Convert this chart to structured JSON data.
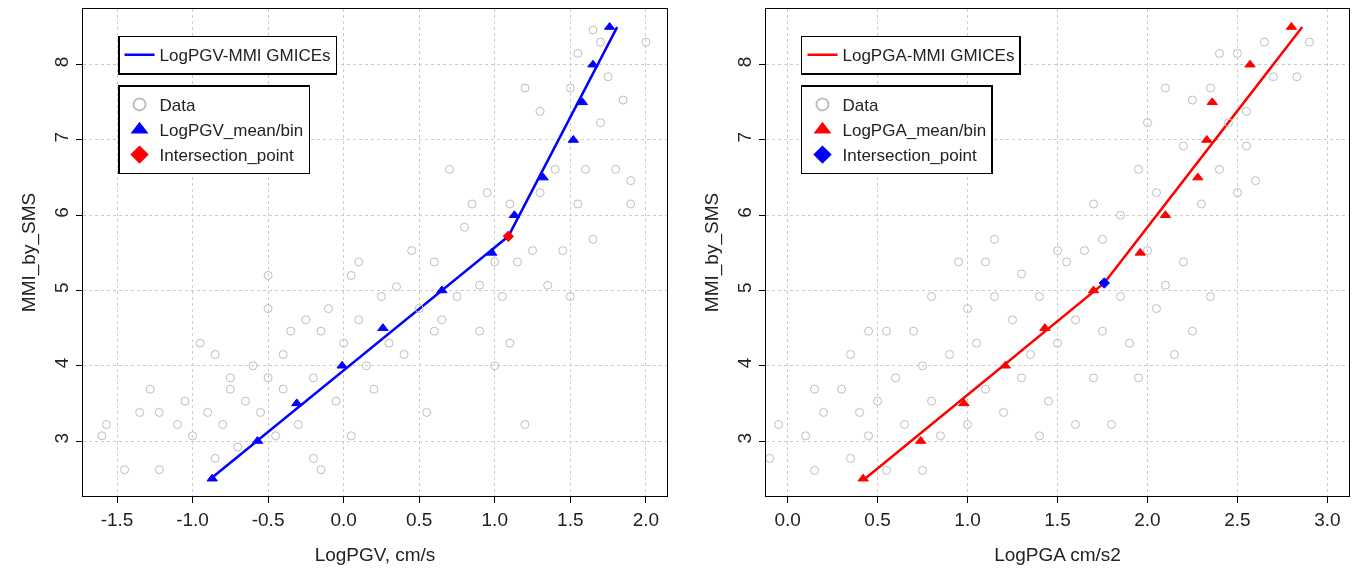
{
  "chart_data": [
    {
      "type": "scatter",
      "xlabel": "LogPGV, cm/s",
      "ylabel": "MMI_by_SMS",
      "xlim": [
        -1.725,
        2.14
      ],
      "ylim": [
        2.27,
        8.74
      ],
      "xticks": [
        {
          "value": -1.5,
          "label": "-1.5"
        },
        {
          "value": -1,
          "label": "-1.0"
        },
        {
          "value": -0.5,
          "label": "-0.5"
        },
        {
          "value": 0,
          "label": "0.0"
        },
        {
          "value": 0.5,
          "label": "0.5"
        },
        {
          "value": 1,
          "label": "1.0"
        },
        {
          "value": 1.5,
          "label": "1.5"
        },
        {
          "value": 2,
          "label": "2.0"
        }
      ],
      "yticks": [
        3,
        4,
        5,
        6,
        7,
        8
      ],
      "grid": true,
      "legend": "top left",
      "series": [
        {
          "name": "LogPGV-MMI GMICEs",
          "type": "line",
          "color": "#0000ff",
          "marker": "none",
          "x": [
            -0.88,
            1.09,
            1.81
          ],
          "values": [
            2.5,
            5.72,
            8.5
          ]
        },
        {
          "name": "Data",
          "type": "scatter",
          "color": "#bebebe",
          "marker": "circle",
          "x": [
            -1.6,
            -1.57,
            -1.45,
            -1.35,
            -1.28,
            -1.22,
            -1.22,
            -1.1,
            -1.05,
            -1.0,
            -0.95,
            -0.9,
            -0.85,
            -0.85,
            -0.8,
            -0.75,
            -0.75,
            -0.7,
            -0.65,
            -0.6,
            -0.55,
            -0.5,
            -0.5,
            -0.5,
            -0.45,
            -0.4,
            -0.4,
            -0.35,
            -0.3,
            -0.25,
            -0.2,
            -0.2,
            -0.15,
            -0.15,
            -0.1,
            -0.05,
            0.0,
            0.05,
            0.05,
            0.1,
            0.1,
            0.15,
            0.2,
            0.25,
            0.3,
            0.35,
            0.4,
            0.45,
            0.5,
            0.55,
            0.6,
            0.6,
            0.65,
            0.7,
            0.75,
            0.8,
            0.85,
            0.9,
            0.9,
            0.95,
            1.0,
            1.0,
            1.05,
            1.1,
            1.1,
            1.15,
            1.2,
            1.2,
            1.25,
            1.3,
            1.3,
            1.35,
            1.4,
            1.45,
            1.5,
            1.5,
            1.55,
            1.55,
            1.6,
            1.65,
            1.7,
            1.75,
            1.8,
            1.85,
            1.9,
            2.0,
            1.9,
            1.7,
            1.65
          ],
          "values": [
            3.07,
            3.22,
            2.62,
            3.38,
            3.69,
            3.38,
            2.62,
            3.22,
            3.53,
            3.07,
            4.3,
            3.38,
            4.15,
            2.77,
            3.22,
            3.69,
            3.84,
            2.92,
            3.53,
            4.0,
            3.38,
            5.2,
            3.84,
            4.76,
            3.07,
            4.15,
            3.69,
            4.46,
            3.22,
            4.61,
            3.84,
            2.77,
            2.62,
            4.46,
            4.76,
            3.53,
            4.3,
            5.2,
            3.07,
            5.38,
            4.61,
            4.0,
            3.69,
            4.92,
            4.3,
            5.05,
            4.15,
            5.53,
            4.76,
            3.38,
            5.38,
            4.46,
            4.61,
            6.61,
            4.92,
            5.84,
            6.15,
            4.46,
            5.07,
            6.3,
            5.38,
            4.0,
            4.92,
            6.15,
            4.3,
            5.38,
            7.69,
            3.22,
            5.53,
            6.3,
            7.38,
            5.07,
            6.61,
            5.53,
            7.69,
            4.92,
            6.15,
            8.15,
            6.61,
            5.68,
            7.23,
            7.84,
            6.61,
            7.53,
            6.15,
            8.3,
            6.46,
            8.3,
            8.46
          ]
        },
        {
          "name": "LogPGV_mean/bin",
          "type": "scatter",
          "color": "#0000ff",
          "marker": "triangle",
          "x": [
            -0.87,
            -0.57,
            -0.31,
            -0.01,
            0.26,
            0.65,
            0.98,
            1.13,
            1.32,
            1.52,
            1.58,
            1.65,
            1.76
          ],
          "values": [
            2.5,
            3.0,
            3.5,
            4.0,
            4.5,
            5.0,
            5.5,
            6.0,
            6.5,
            7.0,
            7.5,
            8.0,
            8.5
          ]
        },
        {
          "name": "Intersection_point",
          "type": "scatter",
          "color": "#ff0000",
          "marker": "diamond",
          "x": [
            1.09
          ],
          "values": [
            5.72
          ]
        }
      ]
    },
    {
      "type": "scatter",
      "xlabel": "LogPGA cm/s2",
      "ylabel": "MMI_by_SMS",
      "xlim": [
        -0.12,
        3.12
      ],
      "ylim": [
        2.27,
        8.74
      ],
      "xticks": [
        {
          "value": 0,
          "label": "0.0"
        },
        {
          "value": 0.5,
          "label": "0.5"
        },
        {
          "value": 1,
          "label": "1.0"
        },
        {
          "value": 1.5,
          "label": "1.5"
        },
        {
          "value": 2,
          "label": "2.0"
        },
        {
          "value": 2.5,
          "label": "2.5"
        },
        {
          "value": 3,
          "label": "3.0"
        }
      ],
      "yticks": [
        3,
        4,
        5,
        6,
        7,
        8
      ],
      "grid": true,
      "legend": "top left",
      "series": [
        {
          "name": "LogPGA-MMI GMICEs",
          "type": "line",
          "color": "#ff0000",
          "marker": "none",
          "x": [
            0.43,
            1.76,
            2.86
          ],
          "values": [
            2.5,
            5.1,
            8.5
          ]
        },
        {
          "name": "Data",
          "type": "scatter",
          "color": "#bebebe",
          "marker": "circle",
          "x": [
            -0.1,
            -0.05,
            0.1,
            0.15,
            0.15,
            0.2,
            0.3,
            0.35,
            0.35,
            0.4,
            0.45,
            0.45,
            0.5,
            0.55,
            0.55,
            0.6,
            0.65,
            0.7,
            0.75,
            0.75,
            0.8,
            0.8,
            0.85,
            0.9,
            0.95,
            1.0,
            1.0,
            1.05,
            1.1,
            1.1,
            1.15,
            1.15,
            1.2,
            1.25,
            1.3,
            1.3,
            1.35,
            1.4,
            1.4,
            1.45,
            1.5,
            1.5,
            1.55,
            1.6,
            1.6,
            1.65,
            1.7,
            1.7,
            1.75,
            1.75,
            1.8,
            1.85,
            1.85,
            1.9,
            1.95,
            1.95,
            2.0,
            2.0,
            2.05,
            2.05,
            2.1,
            2.1,
            2.15,
            2.2,
            2.2,
            2.25,
            2.25,
            2.3,
            2.35,
            2.35,
            2.4,
            2.4,
            2.45,
            2.5,
            2.5,
            2.55,
            2.6,
            2.65,
            2.7,
            2.83,
            2.9,
            2.55
          ],
          "values": [
            2.77,
            3.22,
            3.07,
            3.69,
            2.61,
            3.38,
            3.69,
            4.15,
            2.77,
            3.38,
            4.46,
            3.07,
            3.53,
            4.46,
            2.61,
            3.84,
            3.22,
            4.46,
            2.61,
            4.0,
            3.53,
            4.92,
            3.07,
            4.15,
            5.38,
            4.76,
            3.22,
            4.3,
            5.38,
            3.69,
            5.68,
            4.92,
            3.38,
            4.61,
            3.84,
            5.22,
            4.15,
            4.92,
            3.07,
            3.53,
            5.53,
            4.3,
            5.38,
            3.22,
            4.61,
            5.53,
            6.15,
            3.84,
            5.68,
            4.46,
            3.22,
            6.0,
            4.92,
            4.3,
            6.61,
            3.84,
            5.53,
            7.23,
            6.3,
            4.76,
            7.69,
            5.07,
            4.15,
            6.92,
            5.38,
            7.53,
            4.46,
            6.15,
            7.69,
            4.92,
            8.15,
            6.61,
            7.23,
            8.15,
            6.3,
            7.38,
            6.46,
            8.3,
            7.84,
            7.84,
            8.3,
            6.92
          ]
        },
        {
          "name": "LogPGA_mean/bin",
          "type": "scatter",
          "color": "#ff0000",
          "marker": "triangle",
          "x": [
            0.42,
            0.74,
            0.98,
            1.21,
            1.43,
            1.7,
            1.96,
            2.1,
            2.28,
            2.33,
            2.36,
            2.57,
            2.8
          ],
          "values": [
            2.5,
            3.0,
            3.5,
            4.0,
            4.5,
            5.0,
            5.5,
            6.0,
            6.5,
            7.0,
            7.5,
            8.0,
            8.5
          ]
        },
        {
          "name": "Intersection_point",
          "type": "scatter",
          "color": "#0000ff",
          "marker": "diamond",
          "x": [
            1.76
          ],
          "values": [
            5.1
          ]
        }
      ]
    }
  ]
}
